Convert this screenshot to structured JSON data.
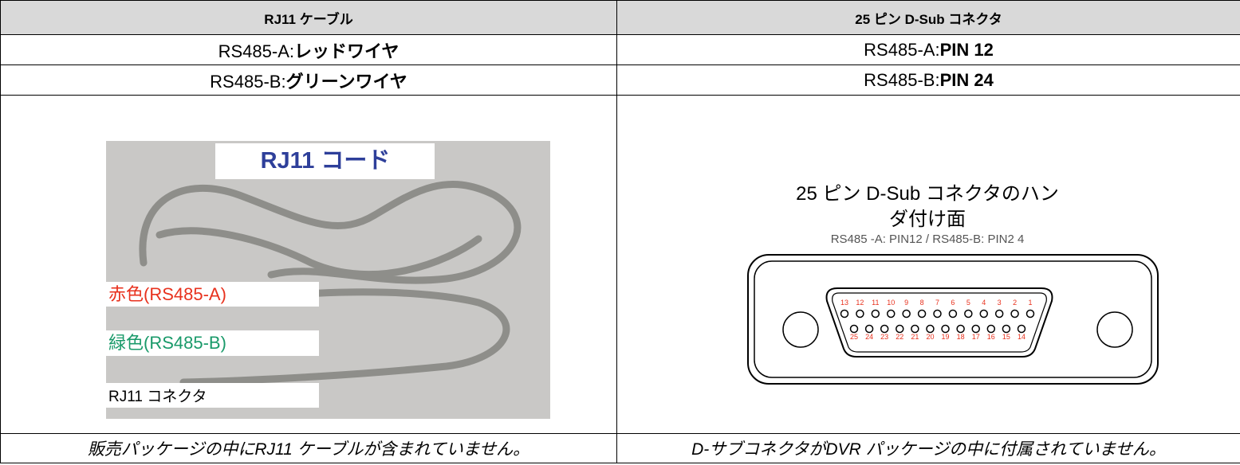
{
  "table": {
    "header": [
      "RJ11 ケーブル",
      "25 ピン D-Sub コネクタ"
    ],
    "rows": [
      [
        {
          "label": "RS485-A:",
          "value": "レッドワイヤ"
        },
        {
          "label": "RS485-A:",
          "value": "PIN 12"
        }
      ],
      [
        {
          "label": "RS485-B:",
          "value": "グリーンワイヤ"
        },
        {
          "label": "RS485-B:",
          "value": "PIN 24"
        }
      ]
    ],
    "footer": [
      "販売パッケージの中にRJ11 ケーブルが含まれていません。",
      "D-サブコネクタがDVR パッケージの中に付属されていません。"
    ]
  },
  "photo": {
    "title": "RJ11 コード",
    "labels": [
      "赤色(RS485-A)",
      "緑色(RS485-B)",
      "RJ11 コネクタ"
    ]
  },
  "diagram": {
    "title_lines": [
      "25 ピン D-Sub コネクタのハン",
      "ダ付け面"
    ],
    "subtitle": "RS485 -A: PIN12 / RS485-B: PIN2 4",
    "top_pins": [
      13,
      12,
      11,
      10,
      9,
      8,
      7,
      6,
      5,
      4,
      3,
      2,
      1
    ],
    "bottom_pins": [
      25,
      24,
      23,
      22,
      21,
      20,
      19,
      18,
      17,
      16,
      15,
      14
    ]
  }
}
